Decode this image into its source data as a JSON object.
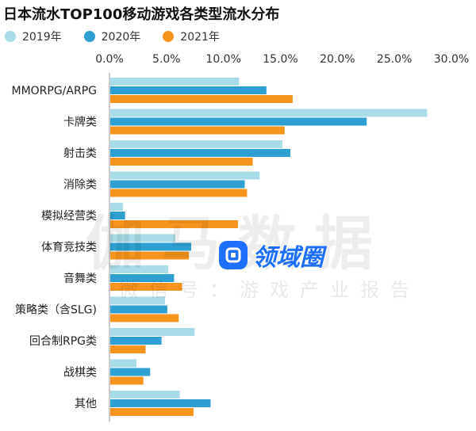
{
  "chart_data": {
    "type": "bar",
    "orientation": "horizontal",
    "title": "日本流水TOP100移动游戏各类型流水分布",
    "categories": [
      "MMORPG/ARPG",
      "卡牌类",
      "射击类",
      "消除类",
      "模拟经营类",
      "体育竞技类",
      "音舞类",
      "策略类（含SLG)",
      "回合制RPG类",
      "战棋类",
      "其他"
    ],
    "series": [
      {
        "name": "2019年",
        "color": "#a8dce8",
        "values": [
          11.3,
          27.8,
          15.1,
          13.1,
          1.1,
          5.7,
          5.1,
          4.8,
          7.4,
          2.3,
          6.1
        ]
      },
      {
        "name": "2020年",
        "color": "#2d9fd0",
        "values": [
          13.7,
          22.5,
          15.8,
          11.8,
          1.3,
          7.1,
          5.6,
          5.0,
          4.5,
          3.5,
          8.8
        ]
      },
      {
        "name": "2021年",
        "color": "#f7941d",
        "values": [
          16.0,
          15.3,
          12.5,
          12.0,
          11.2,
          6.9,
          6.3,
          6.0,
          3.1,
          2.9,
          7.3
        ]
      }
    ],
    "xlim": [
      0,
      30
    ],
    "xticks": [
      "0.0%",
      "5.0%",
      "10.0%",
      "15.0%",
      "20.0%",
      "25.0%",
      "30.0%"
    ],
    "xlabel": "",
    "ylabel": "",
    "legend_position": "top-left",
    "grid": false
  },
  "watermark": {
    "big": "伽马数据",
    "small": "微信号：游戏产业报告",
    "logo_text": "领域圈"
  }
}
